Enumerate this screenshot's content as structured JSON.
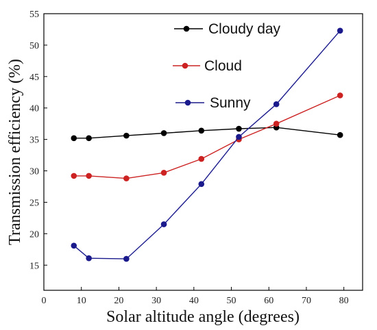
{
  "chart_data": {
    "type": "line",
    "xlabel": "Solar altitude angle (degrees)",
    "ylabel": "Transmission efficiency (%)",
    "xlim": [
      0,
      85
    ],
    "ylim": [
      11,
      55
    ],
    "x_ticks": [
      0,
      10,
      20,
      30,
      40,
      50,
      60,
      70,
      80
    ],
    "y_ticks": [
      15,
      20,
      25,
      30,
      35,
      40,
      45,
      50,
      55
    ],
    "x_tick_labels": [
      "0",
      "10",
      "20",
      "30",
      "40",
      "50",
      "60",
      "70",
      "80"
    ],
    "y_tick_labels": [
      "15",
      "20",
      "25",
      "30",
      "35",
      "40",
      "45",
      "50",
      "55"
    ],
    "legend_position": "top-center",
    "grid": false,
    "series": [
      {
        "name": "Cloudy day",
        "color": "#000000",
        "x": [
          8,
          12,
          22,
          32,
          42,
          52,
          62,
          79
        ],
        "y": [
          35.2,
          35.2,
          35.6,
          36.0,
          36.4,
          36.7,
          36.9,
          35.7
        ]
      },
      {
        "name": "Cloud",
        "color": "#cc2222",
        "x": [
          8,
          12,
          22,
          32,
          42,
          52,
          62,
          79
        ],
        "y": [
          29.2,
          29.2,
          28.8,
          29.7,
          31.9,
          35.0,
          37.5,
          42.0
        ]
      },
      {
        "name": "Sunny",
        "color": "#1a1a8c",
        "x": [
          8,
          12,
          22,
          32,
          42,
          52,
          62,
          79
        ],
        "y": [
          18.1,
          16.1,
          16.0,
          21.5,
          27.9,
          35.4,
          40.6,
          52.3
        ]
      }
    ]
  }
}
